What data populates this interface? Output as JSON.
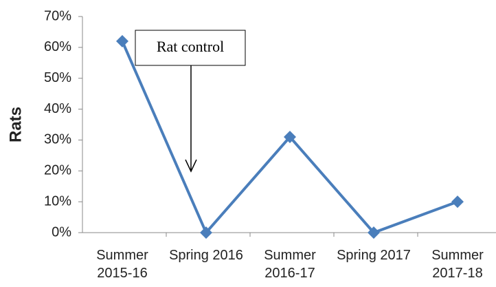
{
  "chart_data": {
    "type": "line",
    "y_label": "Rats",
    "annotation": "Rat control",
    "categories": [
      "Summer 2015-16",
      "Spring 2016",
      "Summer 2016-17",
      "Spring 2017",
      "Summer 2017-18"
    ],
    "series": [
      {
        "name": "Rats",
        "color": "#4a7ebb",
        "values": [
          62,
          0,
          31,
          0,
          10
        ]
      }
    ],
    "ylim": [
      0,
      70
    ],
    "yticks": [
      {
        "value": 0,
        "label": "0%"
      },
      {
        "value": 10,
        "label": "10%"
      },
      {
        "value": 20,
        "label": "20%"
      },
      {
        "value": 30,
        "label": "30%"
      },
      {
        "value": 40,
        "label": "40%"
      },
      {
        "value": 50,
        "label": "50%"
      },
      {
        "value": 60,
        "label": "60%"
      },
      {
        "value": 70,
        "label": "70%"
      }
    ]
  }
}
